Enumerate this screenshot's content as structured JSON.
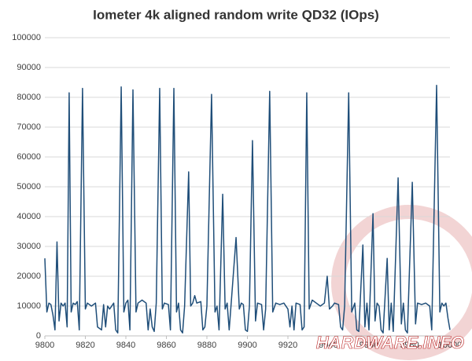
{
  "chart_data": {
    "type": "line",
    "title": "Iometer 4k aligned random write QD32 (IOps)",
    "x": [
      9800,
      9801,
      9802,
      9803,
      9804,
      9805,
      9806,
      9807,
      9808,
      9809,
      9810,
      9811,
      9812,
      9813,
      9814,
      9815,
      9816,
      9817,
      9818.6,
      9820,
      9821,
      9823,
      9825,
      9826,
      9828,
      9829,
      9830,
      9831,
      9832,
      9834,
      9835,
      9836,
      9837.7,
      9839,
      9840,
      9841,
      9842,
      9843.5,
      9845,
      9846,
      9848,
      9850,
      9851,
      9852,
      9853,
      9854,
      9855,
      9856.7,
      9858,
      9859,
      9861,
      9862,
      9863.7,
      9865,
      9866,
      9867,
      9868,
      9869,
      9871,
      9872,
      9873,
      9874,
      9875,
      9877,
      9878,
      9879,
      9880,
      9882.3,
      9884,
      9885,
      9886,
      9887.8,
      9889,
      9890,
      9891,
      9892,
      9894.4,
      9896,
      9897,
      9898,
      9899,
      9900,
      9901,
      9902.5,
      9904,
      9905,
      9907,
      9908,
      9909,
      9911,
      9912.5,
      9914,
      9916,
      9918,
      9920,
      9921,
      9922,
      9923,
      9924,
      9926,
      9927,
      9928,
      9929.3,
      9930.5,
      9932,
      9934,
      9936,
      9938,
      9939.4,
      9940.5,
      9942,
      9943,
      9945,
      9946,
      9947,
      9948,
      9950,
      9951.5,
      9953,
      9954,
      9955,
      9957,
      9958,
      9959,
      9960,
      9962,
      9963,
      9964,
      9965,
      9966,
      9967,
      9969,
      9970,
      9971,
      9972,
      9974.4,
      9976,
      9977,
      9978,
      9979,
      9981.4,
      9983,
      9984,
      9986,
      9988,
      9990,
      9991,
      9993.4,
      9995,
      9996,
      9997,
      9998,
      9999,
      10000
    ],
    "series": [
      {
        "color": "#1f4e79",
        "values": [
          26000,
          8000,
          11000,
          10500,
          7000,
          2000,
          31500,
          5000,
          11000,
          10000,
          11000,
          3000,
          81500,
          8000,
          11000,
          10500,
          11500,
          2000,
          83000,
          9000,
          11000,
          10000,
          11000,
          3000,
          2000,
          10500,
          3000,
          10000,
          9000,
          11000,
          2000,
          1000,
          83500,
          8000,
          11000,
          12000,
          2000,
          82500,
          8000,
          11000,
          12000,
          11000,
          2000,
          9000,
          3000,
          1500,
          11000,
          83000,
          9000,
          11000,
          10500,
          2000,
          83000,
          8000,
          11000,
          2000,
          1000,
          10000,
          55000,
          10000,
          11000,
          13500,
          11000,
          11500,
          2000,
          3000,
          10000,
          81000,
          8000,
          10000,
          2000,
          47500,
          9000,
          11000,
          2000,
          11000,
          33000,
          9000,
          11000,
          10500,
          2000,
          1500,
          10000,
          65500,
          5000,
          11000,
          10500,
          2000,
          9000,
          82000,
          8000,
          11000,
          10500,
          11000,
          9000,
          3000,
          10000,
          2000,
          11000,
          10500,
          2000,
          3000,
          81500,
          9000,
          12000,
          11000,
          10000,
          11000,
          20000,
          9000,
          10000,
          11000,
          10500,
          3000,
          2000,
          10000,
          81500,
          8000,
          11000,
          2000,
          1500,
          30500,
          3000,
          11000,
          2000,
          41000,
          5000,
          11000,
          10000,
          2000,
          1000,
          26000,
          2000,
          11000,
          1500,
          53000,
          4000,
          11000,
          2000,
          1000,
          51500,
          4000,
          11000,
          10500,
          11000,
          10000,
          2000,
          84000,
          8000,
          11000,
          10000,
          11000,
          6000,
          2000
        ]
      }
    ],
    "xlim": [
      9800,
      10000
    ],
    "xticks": [
      9800,
      9820,
      9840,
      9860,
      9880,
      9900,
      9920,
      9940,
      9960,
      9980,
      10000
    ],
    "ylim": [
      0,
      100000
    ],
    "yticks": [
      0,
      10000,
      20000,
      30000,
      40000,
      50000,
      60000,
      70000,
      80000,
      90000,
      100000
    ],
    "grid": true,
    "watermark": "HARDWARE.INFO"
  }
}
